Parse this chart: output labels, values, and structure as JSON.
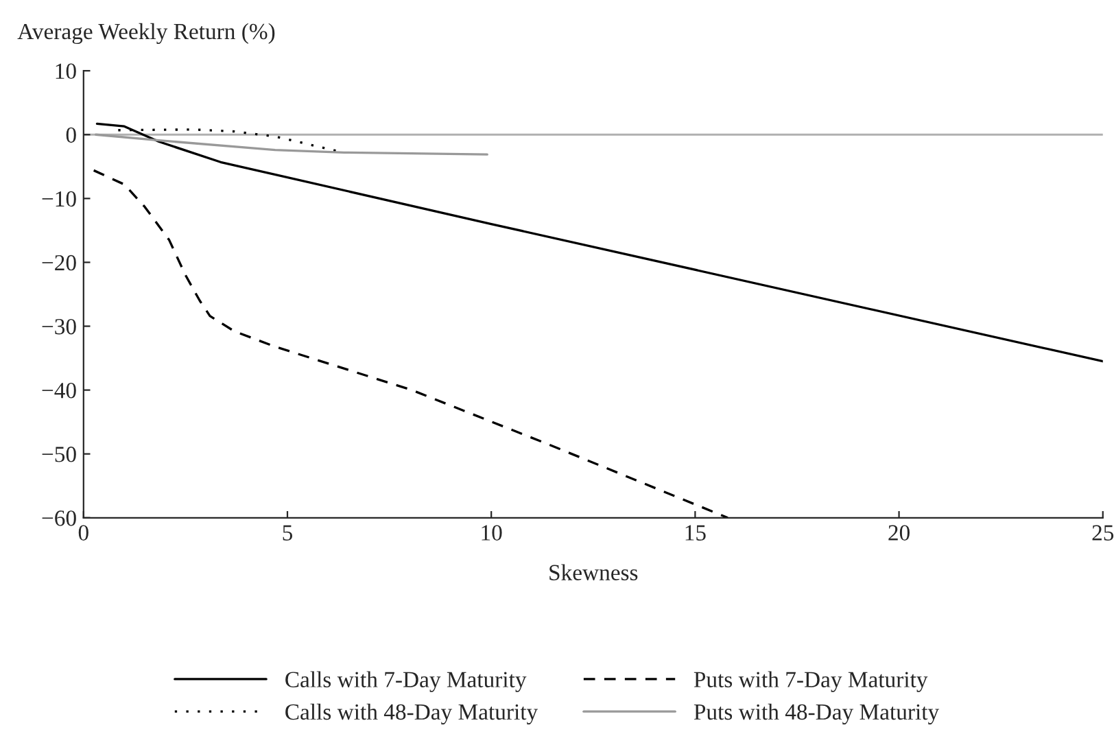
{
  "chart_data": {
    "type": "line",
    "xlabel": "Skewness",
    "ylabel": "Average Weekly Return (%)",
    "xlim": [
      0,
      25
    ],
    "xticks": [
      0,
      5,
      10,
      15,
      20,
      25
    ],
    "ylim": [
      -60,
      10
    ],
    "yticks": [
      10,
      0,
      -10,
      -20,
      -30,
      -40,
      -50,
      -60
    ],
    "grid": false,
    "legend": "bottom",
    "ref_lines": [
      {
        "axis": "y",
        "value": 0,
        "color": "#b0b0b0"
      }
    ],
    "series": [
      {
        "name": "Calls with 7-Day Maturity",
        "color": "#000000",
        "line_style": "solid",
        "x": [
          0.33,
          1.0,
          1.85,
          3.36,
          10,
          25
        ],
        "values": [
          1.7,
          1.3,
          -1.1,
          -4.3,
          -14,
          -35.5
        ]
      },
      {
        "name": "Calls with 48-Day Maturity",
        "color": "#000000",
        "line_style": "dotted",
        "x": [
          0.85,
          2.7,
          3.7,
          4.7,
          6.25
        ],
        "values": [
          0.7,
          0.8,
          0.5,
          -0.3,
          -2.6
        ]
      },
      {
        "name": "Puts with 7-Day Maturity",
        "color": "#000000",
        "line_style": "dashed",
        "x": [
          0.25,
          1.0,
          1.5,
          2.1,
          2.5,
          2.85,
          3.1,
          3.7,
          4.7,
          8.05,
          11.4,
          15.8
        ],
        "values": [
          -5.6,
          -7.8,
          -11.3,
          -16.5,
          -22,
          -26,
          -28.4,
          -30.8,
          -33.2,
          -40,
          -48.5,
          -60
        ]
      },
      {
        "name": "Puts with 48-Day Maturity",
        "color": "#999999",
        "line_style": "solid",
        "x": [
          0.3,
          1.85,
          4.7,
          6.4,
          9.9
        ],
        "values": [
          0,
          -0.9,
          -2.4,
          -2.8,
          -3.1
        ]
      }
    ]
  }
}
